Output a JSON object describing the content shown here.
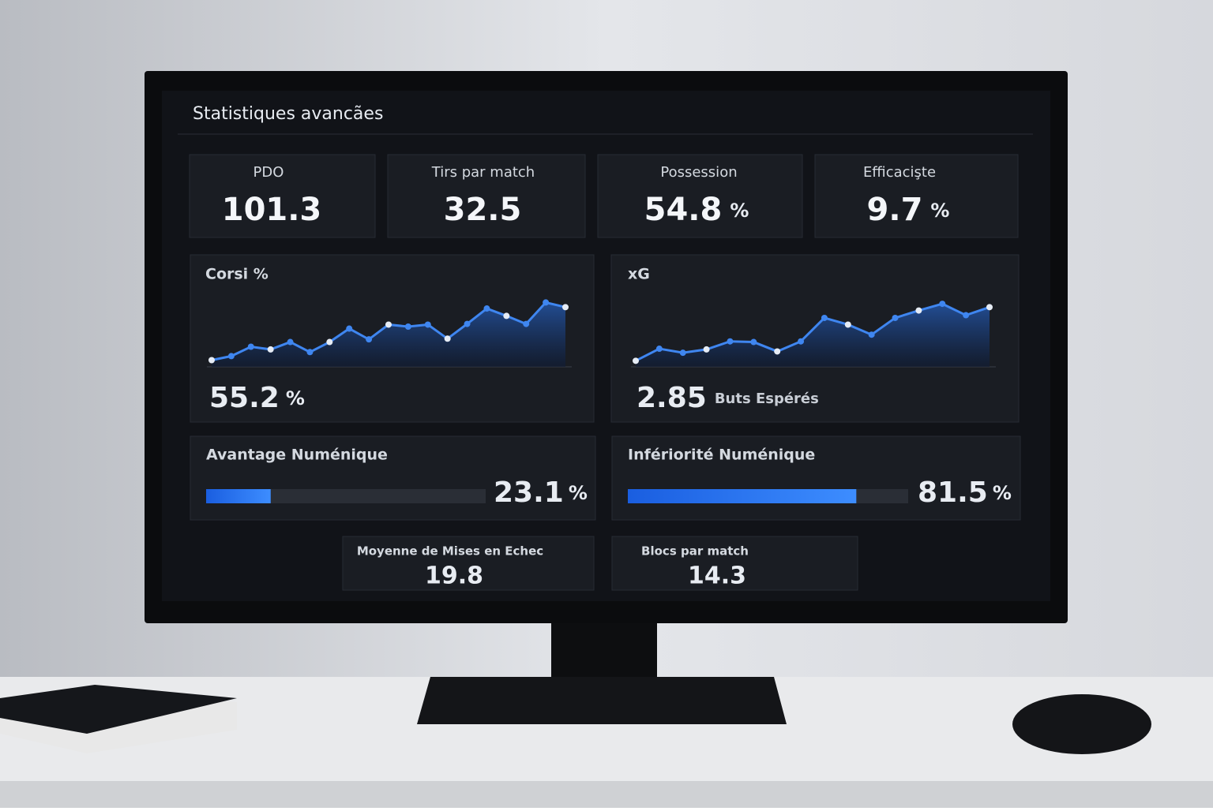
{
  "header": {
    "title": "Statistiques avancães"
  },
  "kpis": [
    {
      "label": "PDO",
      "value": 101.3
    },
    {
      "label": "Tirs par match",
      "value": 32.5
    },
    {
      "label": "Possession",
      "value": 54.8,
      "unit": "%"
    },
    {
      "label": "Efficacişte",
      "value": 9.7,
      "unit": "%"
    }
  ],
  "charts": [
    {
      "type": "line",
      "title": "Corsi %",
      "values": [
        10,
        16,
        30,
        26,
        37,
        22,
        37,
        57,
        41,
        63,
        60,
        63,
        42,
        64,
        87,
        76,
        64,
        96,
        89
      ],
      "ylim": [
        0,
        100
      ],
      "big_value": 55.2,
      "unit": "%"
    },
    {
      "type": "line",
      "title": "xG",
      "values": [
        9,
        27,
        21,
        26,
        38,
        37,
        23,
        38,
        73,
        63,
        48,
        73,
        84,
        94,
        77,
        89
      ],
      "ylim": [
        0,
        100
      ],
      "big_value": 2.85,
      "caption": "Buts Espérés"
    }
  ],
  "progress": [
    {
      "label": "Avantage Numénique",
      "value": 23.1,
      "unit": "%",
      "xlim": [
        0,
        100
      ]
    },
    {
      "label": "Infériorité Numénique",
      "value": 81.5,
      "unit": "%",
      "xlim": [
        0,
        100
      ]
    }
  ],
  "bottom": [
    {
      "label": "Moyenne de Mises en Echec",
      "value": 19.8
    },
    {
      "label": "Blocs par match",
      "value": 14.3
    }
  ]
}
